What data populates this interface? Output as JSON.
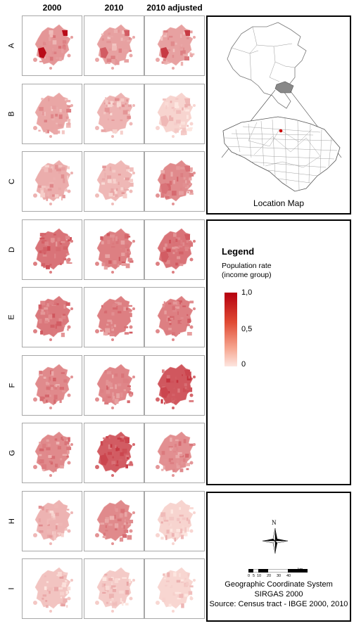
{
  "columns": [
    "2000",
    "2010",
    "2010 adjusted"
  ],
  "rows": [
    {
      "label": "A",
      "intensities": [
        0.35,
        0.3,
        0.3
      ],
      "hotspot": [
        0.95,
        0.6,
        0.75
      ]
    },
    {
      "label": "B",
      "intensities": [
        0.28,
        0.22,
        0.08
      ],
      "hotspot": [
        0.3,
        0.25,
        0.2
      ]
    },
    {
      "label": "C",
      "intensities": [
        0.25,
        0.2,
        0.4
      ],
      "hotspot": [
        0.3,
        0.25,
        0.5
      ]
    },
    {
      "label": "D",
      "intensities": [
        0.5,
        0.45,
        0.5
      ],
      "hotspot": [
        0.55,
        0.5,
        0.6
      ]
    },
    {
      "label": "E",
      "intensities": [
        0.48,
        0.45,
        0.45
      ],
      "hotspot": [
        0.5,
        0.5,
        0.5
      ]
    },
    {
      "label": "F",
      "intensities": [
        0.4,
        0.42,
        0.62
      ],
      "hotspot": [
        0.4,
        0.45,
        0.7
      ]
    },
    {
      "label": "G",
      "intensities": [
        0.4,
        0.6,
        0.38
      ],
      "hotspot": [
        0.45,
        0.7,
        0.42
      ]
    },
    {
      "label": "H",
      "intensities": [
        0.22,
        0.4,
        0.08
      ],
      "hotspot": [
        0.25,
        0.45,
        0.1
      ]
    },
    {
      "label": "I",
      "intensities": [
        0.15,
        0.12,
        0.07
      ],
      "hotspot": [
        0.15,
        0.12,
        0.08
      ]
    }
  ],
  "location_map": {
    "caption": "Location Map"
  },
  "legend": {
    "title": "Legend",
    "subtitle_line1": "Population rate",
    "subtitle_line2": "(income group)",
    "max_label": "1,0",
    "mid_label": "0,5",
    "min_label": "0",
    "color_high": "#b5000f",
    "color_low": "#fde6e0"
  },
  "info": {
    "north": "N",
    "scale_ticks": [
      "0",
      "5",
      "10",
      "20",
      "30",
      "40"
    ],
    "scale_unit": "km",
    "line1": "Geographic Coordinate System",
    "line2": "SIRGAS 2000",
    "line3": "Source: Census tract - IBGE 2000, 2010"
  }
}
